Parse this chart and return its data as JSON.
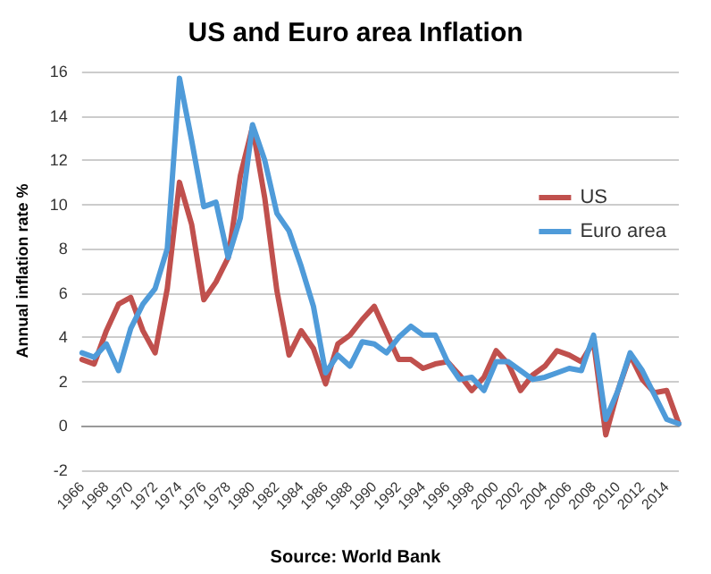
{
  "chart_data": {
    "type": "line",
    "title": "US and Euro area Inflation",
    "ylabel": "Annual inflation rate %",
    "annotations": [
      "Source: World Bank"
    ],
    "categories": [
      "1966",
      null,
      "1968",
      null,
      "1970",
      null,
      "1972",
      null,
      "1974",
      null,
      "1976",
      null,
      "1978",
      null,
      "1980",
      null,
      "1982",
      null,
      "1984",
      null,
      "1986",
      null,
      "1988",
      null,
      "1990",
      null,
      "1992",
      null,
      "1994",
      null,
      "1996",
      null,
      "1998",
      null,
      "2000",
      null,
      "2002",
      null,
      "2004",
      null,
      "2006",
      null,
      "2008",
      null,
      "2010",
      null,
      "2012",
      null,
      "2014",
      null
    ],
    "series": [
      {
        "name": "US",
        "color": "#c0504d",
        "values": [
          3.0,
          2.8,
          4.3,
          5.5,
          5.8,
          4.3,
          3.3,
          6.2,
          11.0,
          9.1,
          5.7,
          6.5,
          7.6,
          11.3,
          13.5,
          10.3,
          6.1,
          3.2,
          4.3,
          3.5,
          1.9,
          3.7,
          4.1,
          4.8,
          5.4,
          4.2,
          3.0,
          3.0,
          2.6,
          2.8,
          2.9,
          2.3,
          1.6,
          2.2,
          3.4,
          2.8,
          1.6,
          2.3,
          2.7,
          3.4,
          3.2,
          2.9,
          3.8,
          -0.4,
          1.6,
          3.2,
          2.1,
          1.5,
          1.6,
          0.1
        ]
      },
      {
        "name": "Euro area",
        "color": "#4f9bd9",
        "values": [
          3.3,
          3.1,
          3.7,
          2.5,
          4.4,
          5.5,
          6.2,
          8.0,
          15.7,
          12.9,
          9.9,
          10.1,
          7.6,
          9.4,
          13.6,
          12.0,
          9.6,
          8.8,
          7.2,
          5.4,
          2.4,
          3.2,
          2.7,
          3.8,
          3.7,
          3.3,
          4.0,
          4.5,
          4.1,
          4.1,
          2.9,
          2.1,
          2.2,
          1.6,
          2.9,
          2.9,
          2.5,
          2.1,
          2.2,
          2.4,
          2.6,
          2.5,
          4.1,
          0.3,
          1.6,
          3.3,
          2.5,
          1.4,
          0.3,
          0.1
        ]
      }
    ],
    "ylim": [
      -2,
      16
    ],
    "yticks": [
      -2,
      0,
      2,
      4,
      6,
      8,
      10,
      12,
      14,
      16
    ],
    "grid": "y",
    "legend": "right",
    "marker": "none",
    "line_style": "solid"
  }
}
